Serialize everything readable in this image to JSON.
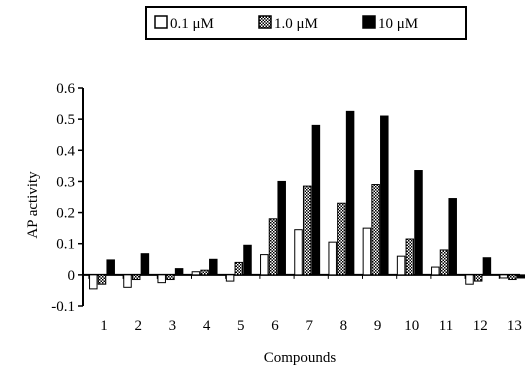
{
  "chart_data": {
    "type": "bar",
    "title": "",
    "xlabel": "Compounds",
    "ylabel": "AP activity",
    "ylim": [
      -0.1,
      0.6
    ],
    "yticks": [
      {
        "value": -0.1,
        "label": "-0.1"
      },
      {
        "value": 0,
        "label": "0"
      },
      {
        "value": 0.1,
        "label": "0.1"
      },
      {
        "value": 0.2,
        "label": "0.2"
      },
      {
        "value": 0.3,
        "label": "0.3"
      },
      {
        "value": 0.4,
        "label": "0.4"
      },
      {
        "value": 0.5,
        "label": "0.5"
      },
      {
        "value": 0.6,
        "label": "0.6"
      }
    ],
    "categories": [
      "1",
      "2",
      "3",
      "4",
      "5",
      "6",
      "7",
      "8",
      "9",
      "10",
      "11",
      "12",
      "13"
    ],
    "grid": false,
    "legend_position": "top",
    "series": [
      {
        "name": "0.1 μM",
        "pattern": "open",
        "values": [
          -0.045,
          -0.04,
          -0.025,
          0.01,
          -0.02,
          0.065,
          0.145,
          0.105,
          0.15,
          0.06,
          0.025,
          -0.03,
          -0.01
        ]
      },
      {
        "name": "1.0 μM",
        "pattern": "dotted",
        "values": [
          -0.03,
          -0.015,
          -0.015,
          0.015,
          0.04,
          0.18,
          0.285,
          0.23,
          0.29,
          0.115,
          0.08,
          -0.02,
          -0.015
        ]
      },
      {
        "name": "10 μM",
        "pattern": "solid",
        "values": [
          0.048,
          0.068,
          0.02,
          0.05,
          0.095,
          0.3,
          0.48,
          0.525,
          0.51,
          0.335,
          0.245,
          0.055,
          -0.01
        ]
      }
    ]
  }
}
